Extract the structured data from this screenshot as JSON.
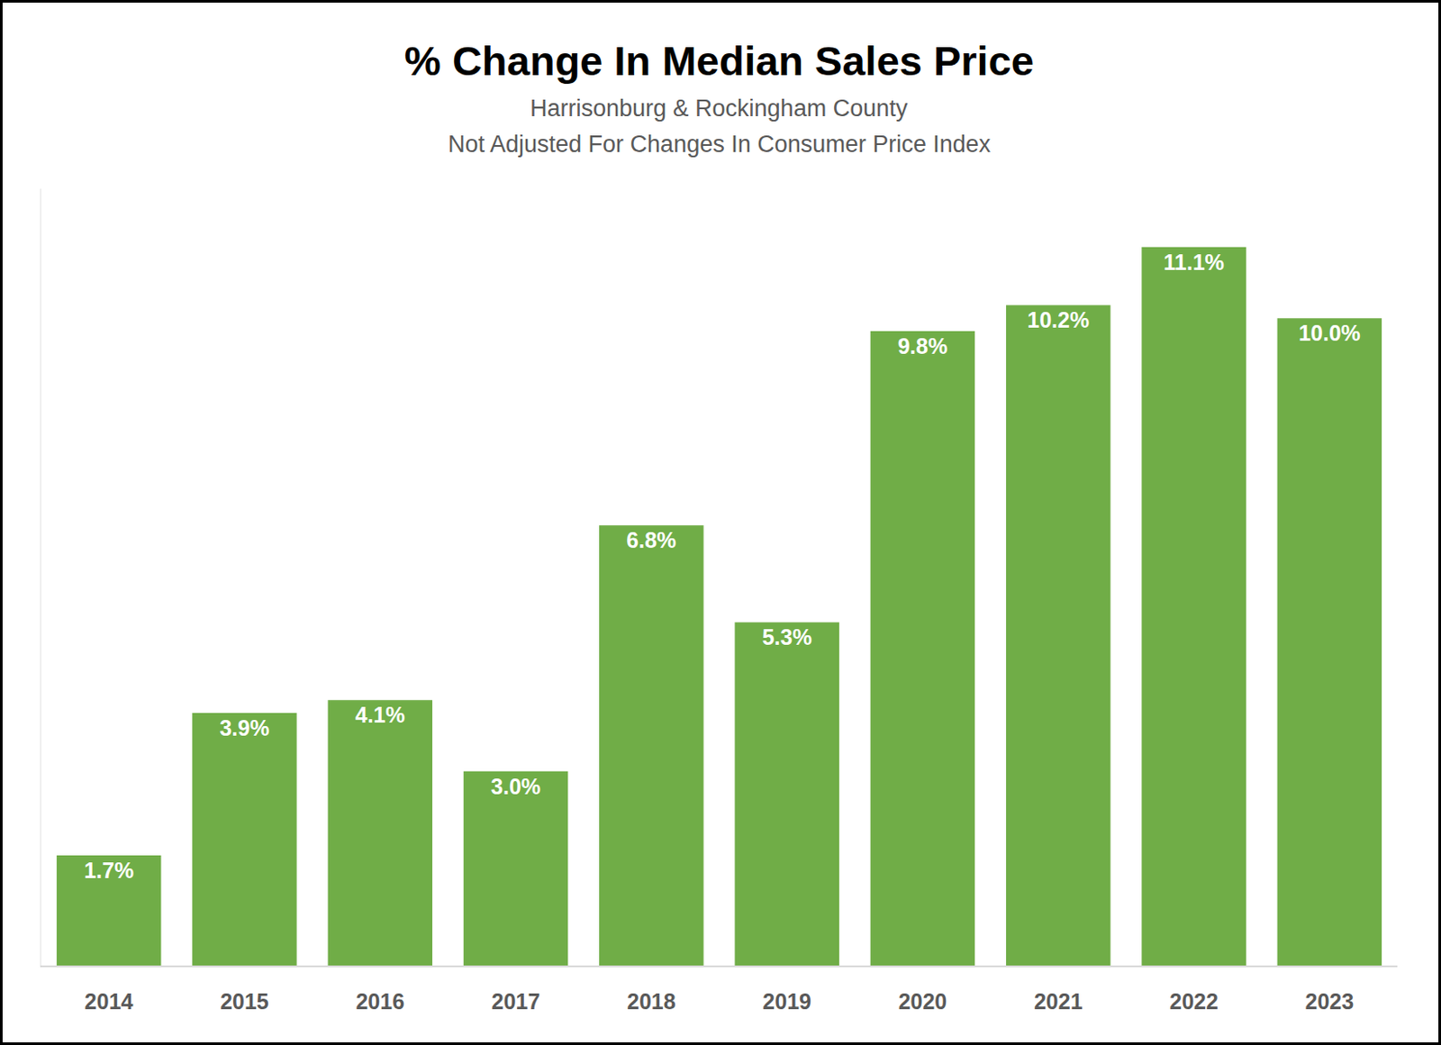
{
  "chart_data": {
    "type": "bar",
    "title": "% Change In Median Sales Price",
    "subtitle": [
      "Harrisonburg & Rockingham County",
      "Not Adjusted For Changes In Consumer Price Index"
    ],
    "categories": [
      "2014",
      "2015",
      "2016",
      "2017",
      "2018",
      "2019",
      "2020",
      "2021",
      "2022",
      "2023"
    ],
    "values": [
      1.7,
      3.9,
      4.1,
      3.0,
      6.8,
      5.3,
      9.8,
      10.2,
      11.1,
      10.0
    ],
    "value_labels": [
      "1.7%",
      "3.9%",
      "4.1%",
      "3.0%",
      "6.8%",
      "5.3%",
      "9.8%",
      "10.2%",
      "11.1%",
      "10.0%"
    ],
    "color": "#70ad47",
    "ylim": [
      0,
      12
    ],
    "yticks": [],
    "grid": false,
    "data_labels": true,
    "tick_labels": "x"
  }
}
